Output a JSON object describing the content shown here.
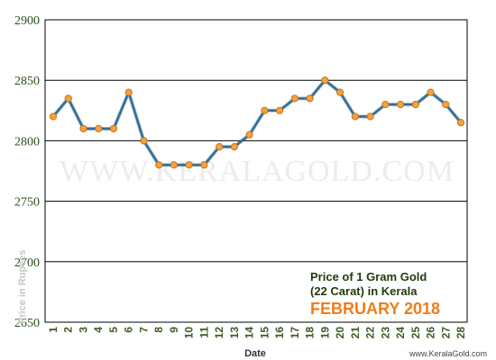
{
  "chart_data": {
    "type": "line",
    "title": "Price of 1 Gram Gold",
    "title_line2": "(22 Carat) in Kerala",
    "subtitle": "FEBRUARY 2018",
    "xlabel": "Date",
    "ylabel": "Price in Rupees",
    "watermark": "WWW.KERALAGOLD.COM",
    "credit": "www.KeralaGold.com",
    "ylim": [
      2650,
      2900
    ],
    "yticks": [
      2650,
      2700,
      2750,
      2800,
      2850,
      2900
    ],
    "grid": true,
    "categories": [
      "1",
      "2",
      "3",
      "4",
      "5",
      "6",
      "7",
      "8",
      "9",
      "10",
      "11",
      "12",
      "13",
      "14",
      "15",
      "16",
      "17",
      "18",
      "19",
      "20",
      "21",
      "22",
      "23",
      "24",
      "25",
      "26",
      "27",
      "28"
    ],
    "series": [
      {
        "values": [
          2820,
          2835,
          2810,
          2810,
          2810,
          2840,
          2800,
          2780,
          2780,
          2780,
          2780,
          2795,
          2795,
          2805,
          2825,
          2825,
          2835,
          2835,
          2850,
          2840,
          2820,
          2820,
          2830,
          2830,
          2830,
          2840,
          2830,
          2815
        ]
      }
    ],
    "colors": {
      "line": "#2b6f9e",
      "marker": "#f5a23c",
      "marker_stroke": "#c7741a",
      "tick_text": "#2e4d1f",
      "title": "#1f3a0c",
      "subtitle": "#f07d1a"
    }
  }
}
